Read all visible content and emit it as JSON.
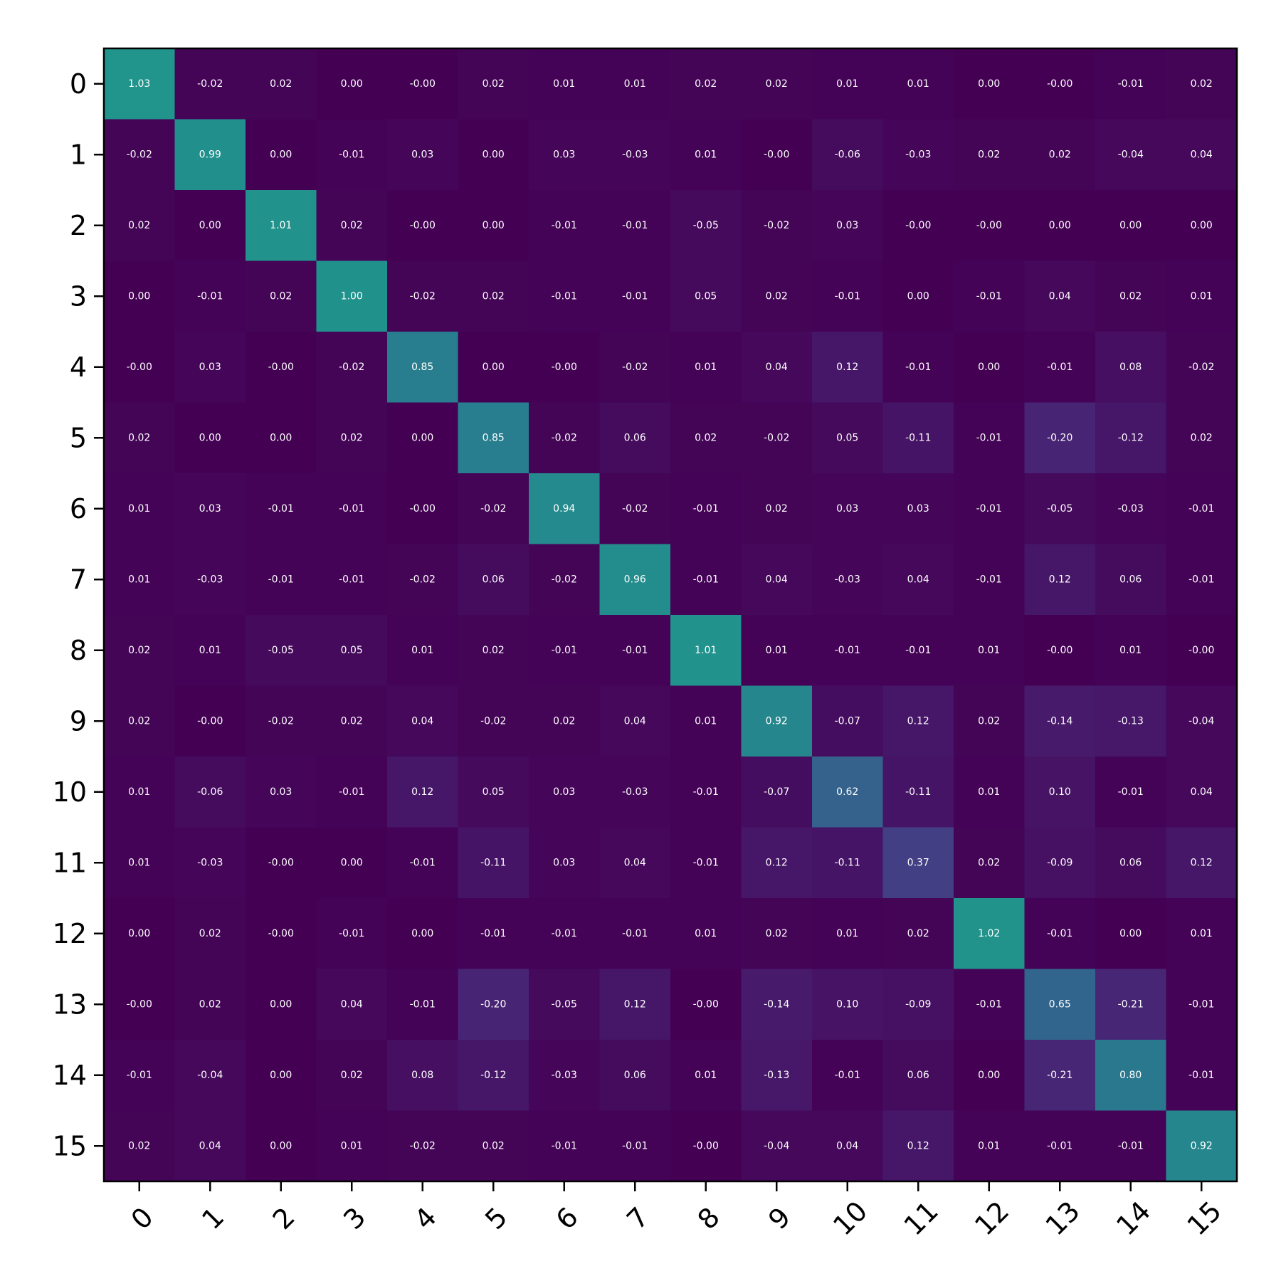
{
  "chart_data": {
    "type": "heatmap",
    "title": "",
    "xlabel": "",
    "ylabel": "",
    "x_tick_labels": [
      "0",
      "1",
      "2",
      "3",
      "4",
      "5",
      "6",
      "7",
      "8",
      "9",
      "10",
      "11",
      "12",
      "13",
      "14",
      "15"
    ],
    "y_tick_labels": [
      "0",
      "1",
      "2",
      "3",
      "4",
      "5",
      "6",
      "7",
      "8",
      "9",
      "10",
      "11",
      "12",
      "13",
      "14",
      "15"
    ],
    "colormap": "viridis",
    "color_range": [
      0,
      2
    ],
    "values": [
      [
        1.03,
        -0.02,
        0.02,
        0.0,
        -0.0,
        0.02,
        0.01,
        0.01,
        0.02,
        0.02,
        0.01,
        0.01,
        0.0,
        -0.0,
        -0.01,
        0.02
      ],
      [
        -0.02,
        0.99,
        0.0,
        -0.01,
        0.03,
        0.0,
        0.03,
        -0.03,
        0.01,
        -0.0,
        -0.06,
        -0.03,
        0.02,
        0.02,
        -0.04,
        0.04
      ],
      [
        0.02,
        0.0,
        1.01,
        0.02,
        -0.0,
        0.0,
        -0.01,
        -0.01,
        -0.05,
        -0.02,
        0.03,
        -0.0,
        -0.0,
        0.0,
        0.0,
        0.0
      ],
      [
        0.0,
        -0.01,
        0.02,
        1.0,
        -0.02,
        0.02,
        -0.01,
        -0.01,
        0.05,
        0.02,
        -0.01,
        0.0,
        -0.01,
        0.04,
        0.02,
        0.01
      ],
      [
        -0.0,
        0.03,
        -0.0,
        -0.02,
        0.85,
        0.0,
        -0.0,
        -0.02,
        0.01,
        0.04,
        0.12,
        -0.01,
        0.0,
        -0.01,
        0.08,
        -0.02
      ],
      [
        0.02,
        0.0,
        0.0,
        0.02,
        0.0,
        0.85,
        -0.02,
        0.06,
        0.02,
        -0.02,
        0.05,
        -0.11,
        -0.01,
        -0.2,
        -0.12,
        0.02
      ],
      [
        0.01,
        0.03,
        -0.01,
        -0.01,
        -0.0,
        -0.02,
        0.94,
        -0.02,
        -0.01,
        0.02,
        0.03,
        0.03,
        -0.01,
        -0.05,
        -0.03,
        -0.01
      ],
      [
        0.01,
        -0.03,
        -0.01,
        -0.01,
        -0.02,
        0.06,
        -0.02,
        0.96,
        -0.01,
        0.04,
        -0.03,
        0.04,
        -0.01,
        0.12,
        0.06,
        -0.01
      ],
      [
        0.02,
        0.01,
        -0.05,
        0.05,
        0.01,
        0.02,
        -0.01,
        -0.01,
        1.01,
        0.01,
        -0.01,
        -0.01,
        0.01,
        -0.0,
        0.01,
        -0.0
      ],
      [
        0.02,
        -0.0,
        -0.02,
        0.02,
        0.04,
        -0.02,
        0.02,
        0.04,
        0.01,
        0.92,
        -0.07,
        0.12,
        0.02,
        -0.14,
        -0.13,
        -0.04
      ],
      [
        0.01,
        -0.06,
        0.03,
        -0.01,
        0.12,
        0.05,
        0.03,
        -0.03,
        -0.01,
        -0.07,
        0.62,
        -0.11,
        0.01,
        0.1,
        -0.01,
        0.04
      ],
      [
        0.01,
        -0.03,
        -0.0,
        0.0,
        -0.01,
        -0.11,
        0.03,
        0.04,
        -0.01,
        0.12,
        -0.11,
        0.37,
        0.02,
        -0.09,
        0.06,
        0.12
      ],
      [
        0.0,
        0.02,
        -0.0,
        -0.01,
        0.0,
        -0.01,
        -0.01,
        -0.01,
        0.01,
        0.02,
        0.01,
        0.02,
        1.02,
        -0.01,
        0.0,
        0.01
      ],
      [
        -0.0,
        0.02,
        0.0,
        0.04,
        -0.01,
        -0.2,
        -0.05,
        0.12,
        -0.0,
        -0.14,
        0.1,
        -0.09,
        -0.01,
        0.65,
        -0.21,
        -0.01
      ],
      [
        -0.01,
        -0.04,
        0.0,
        0.02,
        0.08,
        -0.12,
        -0.03,
        0.06,
        0.01,
        -0.13,
        -0.01,
        0.06,
        0.0,
        -0.21,
        0.8,
        -0.01
      ],
      [
        0.02,
        0.04,
        0.0,
        0.01,
        -0.02,
        0.02,
        -0.01,
        -0.01,
        -0.0,
        -0.04,
        0.04,
        0.12,
        0.01,
        -0.01,
        -0.01,
        0.92
      ]
    ],
    "value_labels": [
      [
        "1.03",
        "-0.02",
        "0.02",
        "0.00",
        "-0.00",
        "0.02",
        "0.01",
        "0.01",
        "0.02",
        "0.02",
        "0.01",
        "0.01",
        "0.00",
        "-0.00",
        "-0.01",
        "0.02"
      ],
      [
        "-0.02",
        "0.99",
        "0.00",
        "-0.01",
        "0.03",
        "0.00",
        "0.03",
        "-0.03",
        "0.01",
        "-0.00",
        "-0.06",
        "-0.03",
        "0.02",
        "0.02",
        "-0.04",
        "0.04"
      ],
      [
        "0.02",
        "0.00",
        "1.01",
        "0.02",
        "-0.00",
        "0.00",
        "-0.01",
        "-0.01",
        "-0.05",
        "-0.02",
        "0.03",
        "-0.00",
        "-0.00",
        "0.00",
        "0.00",
        "0.00"
      ],
      [
        "0.00",
        "-0.01",
        "0.02",
        "1.00",
        "-0.02",
        "0.02",
        "-0.01",
        "-0.01",
        "0.05",
        "0.02",
        "-0.01",
        "0.00",
        "-0.01",
        "0.04",
        "0.02",
        "0.01"
      ],
      [
        "-0.00",
        "0.03",
        "-0.00",
        "-0.02",
        "0.85",
        "0.00",
        "-0.00",
        "-0.02",
        "0.01",
        "0.04",
        "0.12",
        "-0.01",
        "0.00",
        "-0.01",
        "0.08",
        "-0.02"
      ],
      [
        "0.02",
        "0.00",
        "0.00",
        "0.02",
        "0.00",
        "0.85",
        "-0.02",
        "0.06",
        "0.02",
        "-0.02",
        "0.05",
        "-0.11",
        "-0.01",
        "-0.20",
        "-0.12",
        "0.02"
      ],
      [
        "0.01",
        "0.03",
        "-0.01",
        "-0.01",
        "-0.00",
        "-0.02",
        "0.94",
        "-0.02",
        "-0.01",
        "0.02",
        "0.03",
        "0.03",
        "-0.01",
        "-0.05",
        "-0.03",
        "-0.01"
      ],
      [
        "0.01",
        "-0.03",
        "-0.01",
        "-0.01",
        "-0.02",
        "0.06",
        "-0.02",
        "0.96",
        "-0.01",
        "0.04",
        "-0.03",
        "0.04",
        "-0.01",
        "0.12",
        "0.06",
        "-0.01"
      ],
      [
        "0.02",
        "0.01",
        "-0.05",
        "0.05",
        "0.01",
        "0.02",
        "-0.01",
        "-0.01",
        "1.01",
        "0.01",
        "-0.01",
        "-0.01",
        "0.01",
        "-0.00",
        "0.01",
        "-0.00"
      ],
      [
        "0.02",
        "-0.00",
        "-0.02",
        "0.02",
        "0.04",
        "-0.02",
        "0.02",
        "0.04",
        "0.01",
        "0.92",
        "-0.07",
        "0.12",
        "0.02",
        "-0.14",
        "-0.13",
        "-0.04"
      ],
      [
        "0.01",
        "-0.06",
        "0.03",
        "-0.01",
        "0.12",
        "0.05",
        "0.03",
        "-0.03",
        "-0.01",
        "-0.07",
        "0.62",
        "-0.11",
        "0.01",
        "0.10",
        "-0.01",
        "0.04"
      ],
      [
        "0.01",
        "-0.03",
        "-0.00",
        "0.00",
        "-0.01",
        "-0.11",
        "0.03",
        "0.04",
        "-0.01",
        "0.12",
        "-0.11",
        "0.37",
        "0.02",
        "-0.09",
        "0.06",
        "0.12"
      ],
      [
        "0.00",
        "0.02",
        "-0.00",
        "-0.01",
        "0.00",
        "-0.01",
        "-0.01",
        "-0.01",
        "0.01",
        "0.02",
        "0.01",
        "0.02",
        "1.02",
        "-0.01",
        "0.00",
        "0.01"
      ],
      [
        "-0.00",
        "0.02",
        "0.00",
        "0.04",
        "-0.01",
        "-0.20",
        "-0.05",
        "0.12",
        "-0.00",
        "-0.14",
        "0.10",
        "-0.09",
        "-0.01",
        "0.65",
        "-0.21",
        "-0.01"
      ],
      [
        "-0.01",
        "-0.04",
        "0.00",
        "0.02",
        "0.08",
        "-0.12",
        "-0.03",
        "0.06",
        "0.01",
        "-0.13",
        "-0.01",
        "0.06",
        "0.00",
        "-0.21",
        "0.80",
        "-0.01"
      ],
      [
        "0.02",
        "0.04",
        "0.00",
        "0.01",
        "-0.02",
        "0.02",
        "-0.01",
        "-0.01",
        "-0.00",
        "-0.04",
        "0.04",
        "0.12",
        "0.01",
        "-0.01",
        "-0.01",
        "0.92"
      ]
    ],
    "grid": false,
    "legend": "none",
    "colors": {
      "low": "#440154",
      "high": "#21918c",
      "axis": "#000000",
      "cell_text": "#ffffff"
    }
  }
}
